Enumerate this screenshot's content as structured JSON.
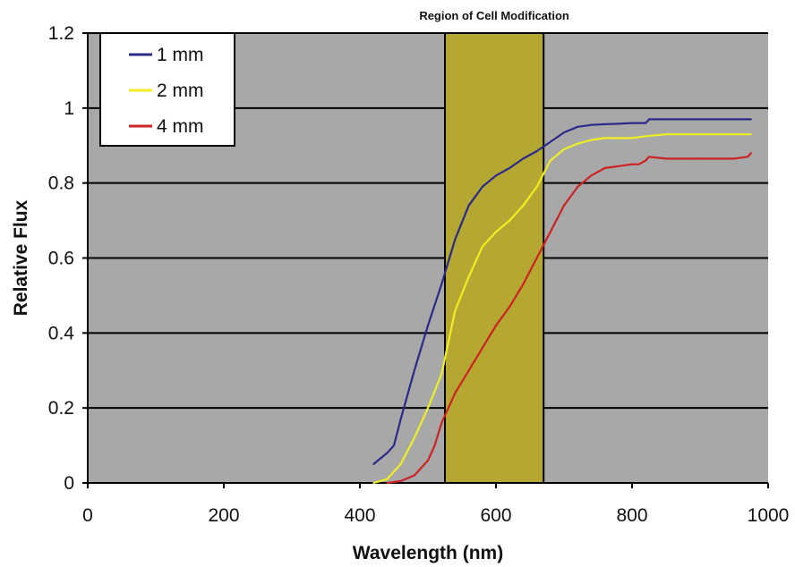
{
  "chart_data": {
    "type": "line",
    "title": "",
    "xlabel": "Wavelength (nm)",
    "ylabel": "Relative Flux",
    "xlim": [
      0,
      1000
    ],
    "ylim": [
      0,
      1.2
    ],
    "x_ticks": [
      "0",
      "200",
      "400",
      "600",
      "800",
      "1000"
    ],
    "y_ticks": [
      "0",
      "0.2",
      "0.4",
      "0.6",
      "0.8",
      "1",
      "1.2"
    ],
    "grid": "horizontal",
    "legend_position": "top-left",
    "plot_background": "#a8a8a8",
    "region": {
      "label": "Region of Cell Modification",
      "x_start": 525,
      "x_end": 670,
      "color": "#b5a832"
    },
    "series": [
      {
        "name": "1 mm",
        "color": "#2a2a8a",
        "x": [
          420,
          440,
          450,
          460,
          480,
          500,
          520,
          540,
          560,
          580,
          600,
          620,
          640,
          660,
          680,
          700,
          720,
          740,
          760,
          780,
          800,
          820,
          825,
          850,
          900,
          950,
          975
        ],
        "y": [
          0.05,
          0.08,
          0.1,
          0.17,
          0.3,
          0.42,
          0.53,
          0.65,
          0.74,
          0.79,
          0.82,
          0.84,
          0.865,
          0.885,
          0.91,
          0.935,
          0.95,
          0.955,
          0.957,
          0.958,
          0.96,
          0.96,
          0.97,
          0.97,
          0.97,
          0.97,
          0.97
        ]
      },
      {
        "name": "2 mm",
        "color": "#eeee22",
        "x": [
          420,
          440,
          460,
          480,
          500,
          520,
          540,
          560,
          580,
          600,
          620,
          640,
          660,
          680,
          700,
          720,
          740,
          760,
          780,
          800,
          820,
          850,
          900,
          950,
          975
        ],
        "y": [
          0.0,
          0.01,
          0.05,
          0.12,
          0.2,
          0.29,
          0.46,
          0.55,
          0.63,
          0.67,
          0.7,
          0.74,
          0.79,
          0.86,
          0.89,
          0.905,
          0.915,
          0.92,
          0.92,
          0.92,
          0.925,
          0.93,
          0.93,
          0.93,
          0.93
        ]
      },
      {
        "name": "4 mm",
        "color": "#cc2222",
        "x": [
          440,
          460,
          480,
          500,
          510,
          520,
          540,
          560,
          580,
          600,
          620,
          640,
          660,
          680,
          700,
          720,
          740,
          760,
          780,
          800,
          810,
          820,
          825,
          850,
          900,
          950,
          970,
          975
        ],
        "y": [
          0.0,
          0.005,
          0.02,
          0.06,
          0.1,
          0.16,
          0.24,
          0.3,
          0.36,
          0.42,
          0.47,
          0.53,
          0.6,
          0.67,
          0.74,
          0.79,
          0.82,
          0.84,
          0.845,
          0.85,
          0.85,
          0.86,
          0.87,
          0.865,
          0.865,
          0.865,
          0.87,
          0.88
        ]
      }
    ]
  }
}
